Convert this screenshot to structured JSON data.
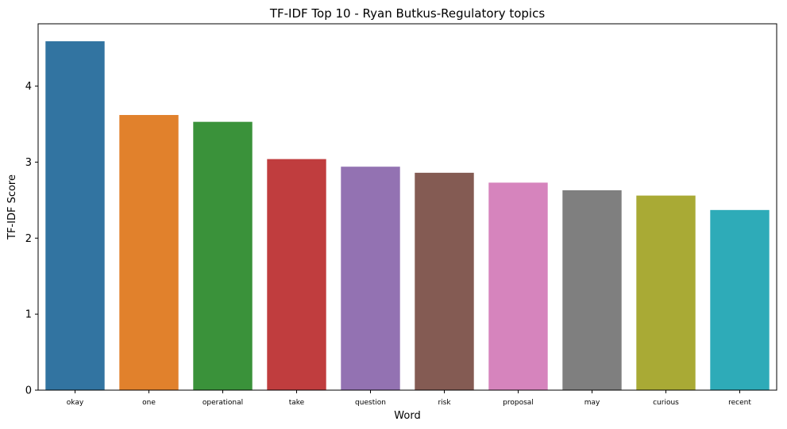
{
  "chart_data": {
    "type": "bar",
    "title": "TF-IDF Top 10 - Ryan Butkus-Regulatory topics",
    "xlabel": "Word",
    "ylabel": "TF-IDF Score",
    "categories": [
      "okay",
      "one",
      "operational",
      "take",
      "question",
      "risk",
      "proposal",
      "may",
      "curious",
      "recent"
    ],
    "values": [
      4.59,
      3.62,
      3.53,
      3.04,
      2.94,
      2.86,
      2.73,
      2.63,
      2.56,
      2.37
    ],
    "colors": [
      "#3274a1",
      "#e1812c",
      "#3a923a",
      "#c03d3e",
      "#9372b2",
      "#845b53",
      "#d684bd",
      "#7f7f7f",
      "#a9aa35",
      "#2eabb8"
    ],
    "ylim": [
      0,
      4.82
    ],
    "yticks": [
      0,
      1,
      2,
      3,
      4
    ],
    "grid": false,
    "legend": "none"
  }
}
